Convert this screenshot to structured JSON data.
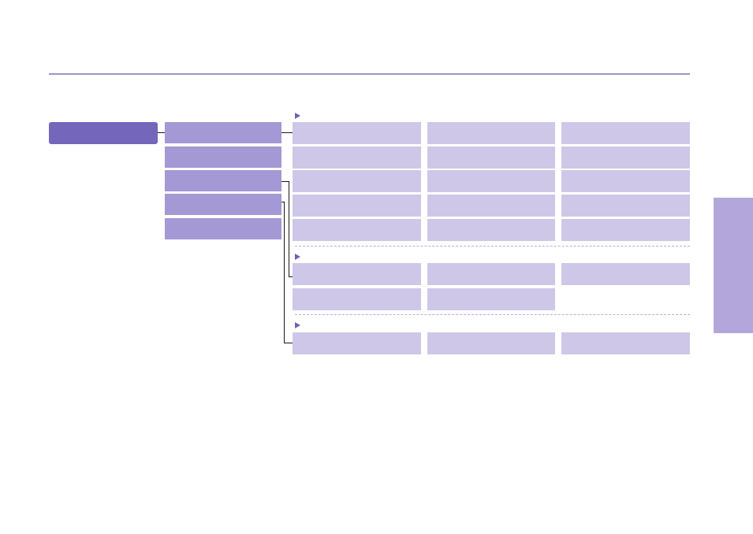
{
  "colors": {
    "rule": "#9d94cc",
    "root_box": "#7466bb",
    "level2_box": "#a498d5",
    "cell_box": "#cfc7e8",
    "side_tab": "#b2a6da",
    "arrow": "#6e62b6",
    "connector": "#1a1a1a"
  },
  "root": {
    "label": ""
  },
  "level2": [
    {
      "label": ""
    },
    {
      "label": ""
    },
    {
      "label": ""
    },
    {
      "label": ""
    },
    {
      "label": ""
    }
  ],
  "groups": [
    {
      "heading": "",
      "rows": [
        [
          "",
          "",
          ""
        ],
        [
          "",
          "",
          ""
        ],
        [
          "",
          "",
          ""
        ],
        [
          "",
          "",
          ""
        ],
        [
          "",
          "",
          ""
        ]
      ]
    },
    {
      "heading": "",
      "rows": [
        [
          "",
          "",
          ""
        ],
        [
          "",
          ""
        ]
      ]
    },
    {
      "heading": "",
      "rows": [
        [
          "",
          "",
          ""
        ]
      ]
    }
  ],
  "side_tab": {
    "label": ""
  }
}
